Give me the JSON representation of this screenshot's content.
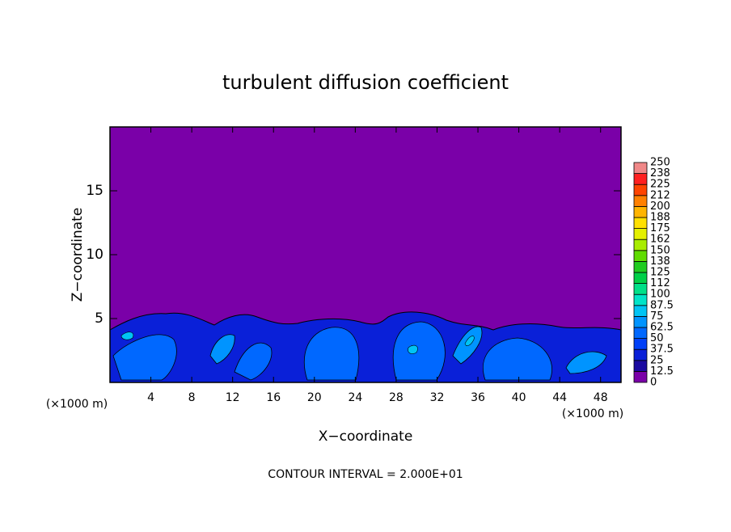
{
  "chart_data": {
    "type": "contour",
    "title": "turbulent diffusion coefficient",
    "x_label": "X−coordinate",
    "y_label": "Z−coordinate",
    "x_unit": "(×1000 m)",
    "y_unit": "(×1000 m)",
    "footnote": "CONTOUR INTERVAL = 2.000E+01",
    "xlim": [
      0,
      50
    ],
    "xticks": [
      4,
      8,
      12,
      16,
      20,
      24,
      28,
      32,
      36,
      40,
      44,
      48
    ],
    "ylim": [
      0,
      20
    ],
    "yticks": [
      5,
      10,
      15
    ],
    "colorbar": {
      "levels": [
        0,
        12.5,
        25,
        37.5,
        50,
        62.5,
        75,
        87.5,
        100,
        {
          "value": 112.5,
          "label": "112"
        },
        125,
        {
          "value": 137.5,
          "label": "138"
        },
        150,
        {
          "value": 162.5,
          "label": "162"
        },
        175,
        {
          "value": 187.5,
          "label": "188"
        },
        200,
        {
          "value": 212.5,
          "label": "212"
        },
        225,
        {
          "value": 237.5,
          "label": "238"
        },
        250
      ],
      "colors": [
        "#7a00a8",
        "#1a0aa0",
        "#0a20d8",
        "#0040f8",
        "#0068ff",
        "#0094ff",
        "#00c4f4",
        "#00e4c8",
        "#00e088",
        "#00d048",
        "#20cc20",
        "#60dc00",
        "#a8ec00",
        "#e4f000",
        "#ffe000",
        "#ffb400",
        "#ff8000",
        "#ff4400",
        "#ff2020",
        "#f08888"
      ]
    }
  }
}
